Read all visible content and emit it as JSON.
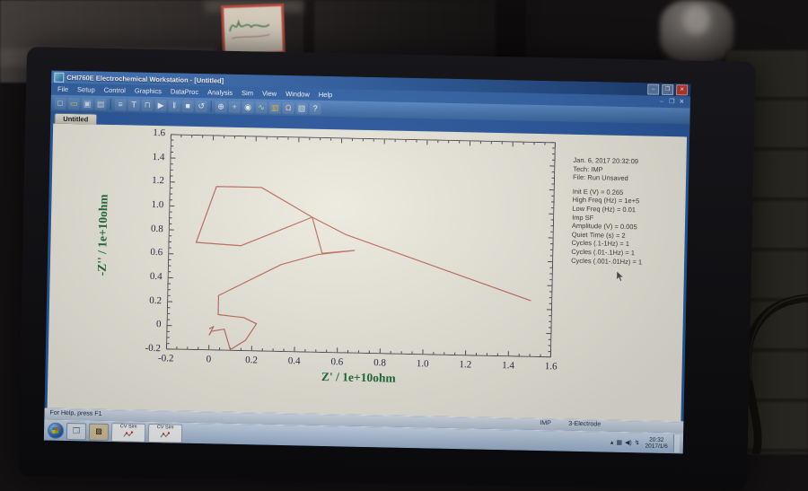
{
  "window": {
    "title": "CHI760E Electrochemical Workstation - [Untitled]",
    "controls": {
      "minimize": "–",
      "maximize": "❐",
      "close": "✕"
    },
    "mdi_controls": {
      "minimize": "–",
      "restore": "❐",
      "close": "✕"
    }
  },
  "menu": {
    "items": [
      "File",
      "Setup",
      "Control",
      "Graphics",
      "DataProc",
      "Analysis",
      "Sim",
      "View",
      "Window",
      "Help"
    ]
  },
  "toolbar": {
    "icons": [
      "new-file",
      "open-file",
      "save",
      "print",
      "setup-tool",
      "text-tool",
      "cell-control",
      "run-experiment",
      "pause",
      "stop",
      "reverse-scan",
      "zoom-in",
      "manual-result",
      "data-reader",
      "overlay-plots",
      "color-scale",
      "ir-compensation",
      "clipboard",
      "context-help"
    ]
  },
  "document_tab": {
    "label": "Untitled"
  },
  "parameters": {
    "lines": [
      "Jan. 6, 2017   20:32:09",
      "Tech: IMP",
      "File: Run Unsaved",
      "",
      "Init E (V) = 0.265",
      "High Freq (Hz) = 1e+5",
      "Low Freq (Hz) = 0.01",
      "Imp SF",
      "Amplitude (V) = 0.005",
      "Quiet Time (s) = 2",
      "Cycles (.1-1Hz) = 1",
      "Cycles (.01-.1Hz) = 1",
      "Cycles (.001-.01Hz) = 1"
    ]
  },
  "status_bar": {
    "help_text": "For Help, press F1",
    "technique": "IMP",
    "cell_mode": "3-Electrode"
  },
  "taskbar": {
    "shortcut_buttons": [
      {
        "label": "CV Sim"
      },
      {
        "label": "CV Sim"
      }
    ],
    "clock_time": "20:32",
    "clock_date": "2017/1/6"
  },
  "chart_data": {
    "type": "line",
    "title": "",
    "xlabel": "Z' / 1e+10ohm",
    "ylabel": "-Z'' / 1e+10ohm",
    "xlim": [
      -0.2,
      1.6
    ],
    "ylim": [
      -0.2,
      1.6
    ],
    "xtick_labels": [
      "-0.2",
      "0",
      "0.2",
      "0.4",
      "0.6",
      "0.8",
      "1.0",
      "1.2",
      "1.4",
      "1.6"
    ],
    "ytick_labels": [
      "-0.2",
      "0",
      "0.2",
      "0.4",
      "0.6",
      "0.8",
      "1.0",
      "1.2",
      "1.4",
      "1.6"
    ],
    "grid": false,
    "frame": "ticks-all-sides",
    "series": [
      {
        "name": "impedance-trace",
        "color": "#bf665c",
        "points": [
          [
            0.0,
            -0.02
          ],
          [
            0.02,
            0.0
          ],
          [
            0.0,
            -0.07
          ],
          [
            0.01,
            -0.04
          ],
          [
            0.07,
            -0.02
          ],
          [
            0.1,
            -0.19
          ],
          [
            0.17,
            -0.11
          ],
          [
            0.22,
            0.03
          ],
          [
            0.16,
            0.08
          ],
          [
            0.04,
            0.1
          ],
          [
            0.04,
            0.26
          ],
          [
            0.33,
            0.53
          ],
          [
            0.5,
            0.62
          ],
          [
            0.67,
            0.66
          ],
          [
            0.52,
            0.63
          ],
          [
            0.47,
            0.93
          ],
          [
            0.14,
            0.68
          ],
          [
            -0.07,
            0.7
          ],
          [
            0.02,
            1.17
          ],
          [
            0.23,
            1.17
          ],
          [
            0.47,
            0.93
          ],
          [
            0.63,
            0.79
          ],
          [
            1.5,
            0.27
          ]
        ]
      }
    ],
    "axis_label_color": "#1c6b38",
    "tick_label_color": "#26264a"
  }
}
